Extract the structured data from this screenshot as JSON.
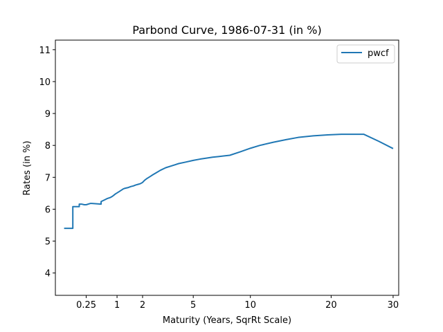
{
  "chart_data": {
    "type": "line",
    "title": "Parbond Curve, 1986-07-31 (in %)",
    "xlabel": "Maturity (Years, SqrRt Scale)",
    "ylabel": "Rates (in %)",
    "x_scale": "sqrt",
    "xlim": [
      0.0,
      31.0
    ],
    "ylim": [
      3.3,
      11.3
    ],
    "xticks": [
      0.25,
      1,
      2,
      5,
      10,
      20,
      30
    ],
    "xtick_labels": [
      "0.25",
      "1",
      "2",
      "5",
      "10",
      "20",
      "30"
    ],
    "yticks": [
      4,
      5,
      6,
      7,
      8,
      9,
      10,
      11
    ],
    "ytick_labels": [
      "4",
      "5",
      "6",
      "7",
      "8",
      "9",
      "10",
      "11"
    ],
    "grid": false,
    "legend": "top-right",
    "color": "#1f77b4",
    "series": [
      {
        "name": "pwcf",
        "x": [
          0.02,
          0.07,
          0.08,
          0.08,
          0.15,
          0.15,
          0.18,
          0.22,
          0.25,
          0.32,
          0.35,
          0.55,
          0.55,
          0.6,
          0.65,
          0.7,
          0.75,
          0.8,
          0.85,
          0.9,
          0.95,
          1.0,
          1.05,
          1.1,
          1.15,
          1.2,
          1.25,
          1.3,
          1.4,
          1.5,
          1.6,
          1.7,
          1.8,
          1.9,
          2.0,
          2.1,
          2.2,
          2.35,
          2.5,
          2.7,
          2.9,
          3.2,
          3.5,
          4.0,
          4.5,
          5.0,
          5.5,
          6.0,
          6.5,
          7.0,
          7.5,
          8.0,
          9.0,
          10.0,
          11.0,
          12.5,
          14.0,
          15.5,
          17.5,
          19.5,
          21.5,
          23.5,
          25.0,
          27.5,
          30.0
        ],
        "y": [
          5.4,
          5.4,
          5.4,
          6.08,
          6.08,
          6.16,
          6.16,
          6.14,
          6.14,
          6.18,
          6.18,
          6.16,
          6.24,
          6.27,
          6.3,
          6.33,
          6.35,
          6.37,
          6.4,
          6.44,
          6.48,
          6.51,
          6.54,
          6.57,
          6.6,
          6.63,
          6.65,
          6.66,
          6.68,
          6.71,
          6.73,
          6.76,
          6.78,
          6.8,
          6.84,
          6.91,
          6.96,
          7.02,
          7.08,
          7.15,
          7.22,
          7.3,
          7.35,
          7.43,
          7.48,
          7.53,
          7.57,
          7.6,
          7.63,
          7.65,
          7.67,
          7.69,
          7.8,
          7.91,
          8.0,
          8.1,
          8.18,
          8.25,
          8.3,
          8.33,
          8.35,
          8.35,
          8.35,
          8.13,
          7.9
        ]
      }
    ]
  }
}
